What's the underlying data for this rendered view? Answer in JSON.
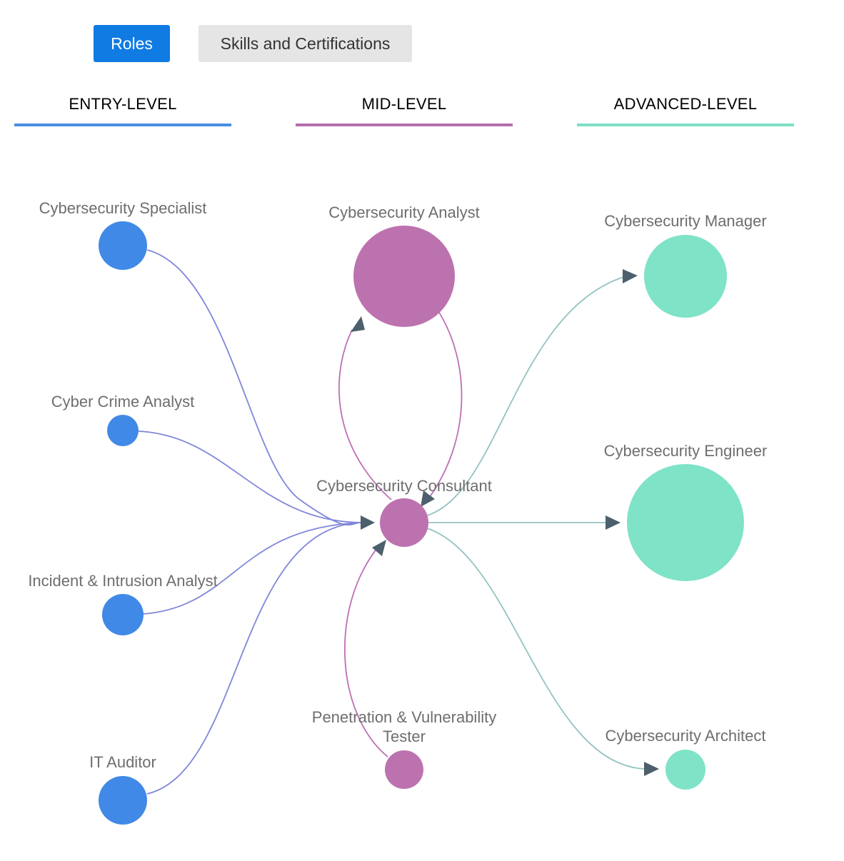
{
  "tabs": {
    "roles_label": "Roles",
    "skills_label": "Skills and Certifications",
    "active": "Roles"
  },
  "levels": [
    {
      "id": "entry",
      "label": "ENTRY-LEVEL",
      "color": "#4a8fe0"
    },
    {
      "id": "mid",
      "label": "MID-LEVEL",
      "color": "#b36fae"
    },
    {
      "id": "advanced",
      "label": "ADVANCED-LEVEL",
      "color": "#7ee0c6"
    }
  ],
  "colors": {
    "entry_node": "#4189e6",
    "mid_node": "#bd72b0",
    "advanced_node": "#7fe3c7",
    "entry_edge": "#7f86d8",
    "mid_edge": "#bd6fb4",
    "advanced_edge": "#94c3c2",
    "arrowhead": "#4c5f6c"
  },
  "nodes": [
    {
      "id": "specialist",
      "level": "entry",
      "label": [
        "Cybersecurity Specialist"
      ],
      "icon": "role-circle"
    },
    {
      "id": "crime",
      "level": "entry",
      "label": [
        "Cyber Crime Analyst"
      ],
      "icon": "role-circle"
    },
    {
      "id": "incident",
      "level": "entry",
      "label": [
        "Incident & Intrusion Analyst"
      ],
      "icon": "role-circle"
    },
    {
      "id": "auditor",
      "level": "entry",
      "label": [
        "IT Auditor"
      ],
      "icon": "role-circle"
    },
    {
      "id": "analyst",
      "level": "mid",
      "label": [
        "Cybersecurity Analyst"
      ],
      "icon": "role-circle"
    },
    {
      "id": "consultant",
      "level": "mid",
      "label": [
        "Cybersecurity Consultant"
      ],
      "icon": "role-circle"
    },
    {
      "id": "pentester",
      "level": "mid",
      "label": [
        "Penetration & Vulnerability",
        "Tester"
      ],
      "icon": "role-circle"
    },
    {
      "id": "manager",
      "level": "advanced",
      "label": [
        "Cybersecurity Manager"
      ],
      "icon": "role-circle"
    },
    {
      "id": "engineer",
      "level": "advanced",
      "label": [
        "Cybersecurity Engineer"
      ],
      "icon": "role-circle"
    },
    {
      "id": "architect",
      "level": "advanced",
      "label": [
        "Cybersecurity Architect"
      ],
      "icon": "role-circle"
    }
  ],
  "edges": [
    {
      "from": "specialist",
      "to": "consultant"
    },
    {
      "from": "crime",
      "to": "consultant"
    },
    {
      "from": "incident",
      "to": "consultant"
    },
    {
      "from": "auditor",
      "to": "consultant"
    },
    {
      "from": "consultant",
      "to": "analyst"
    },
    {
      "from": "analyst",
      "to": "consultant"
    },
    {
      "from": "pentester",
      "to": "consultant"
    },
    {
      "from": "consultant",
      "to": "manager"
    },
    {
      "from": "consultant",
      "to": "engineer"
    },
    {
      "from": "consultant",
      "to": "architect"
    }
  ]
}
